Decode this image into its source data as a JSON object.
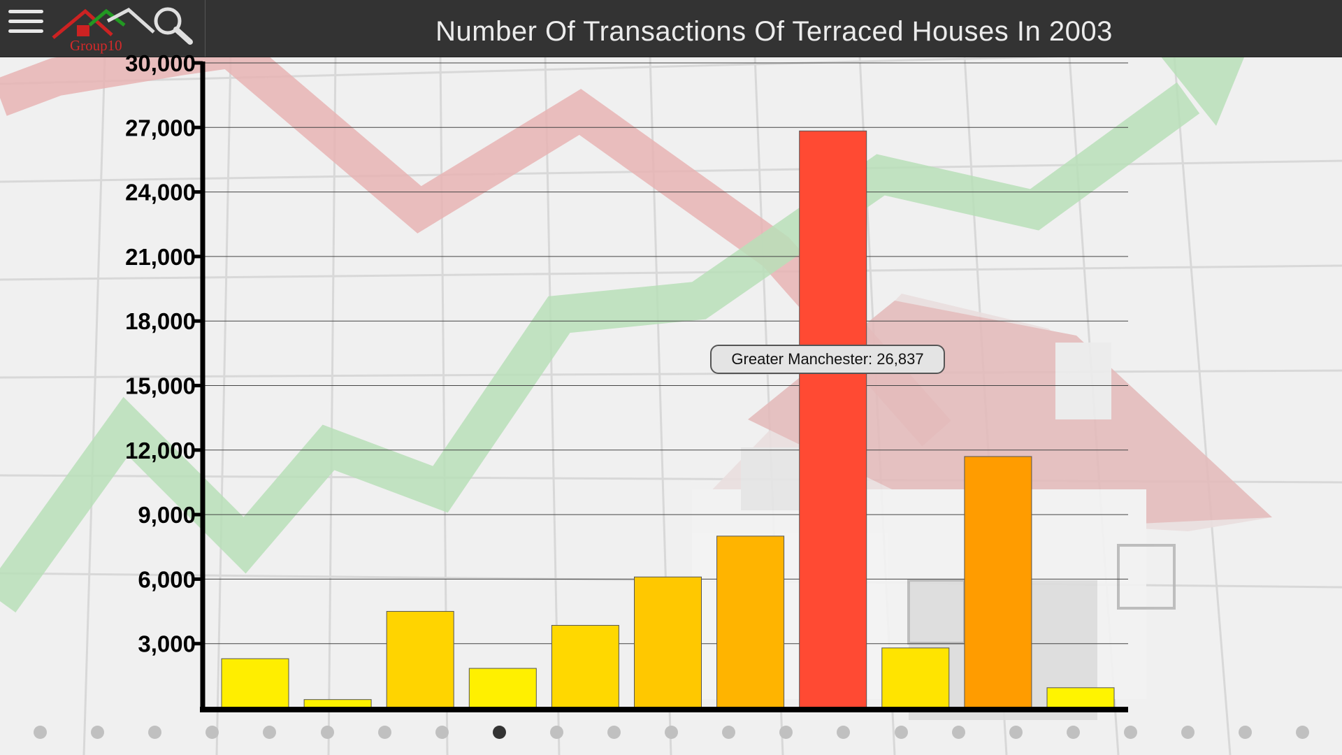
{
  "header": {
    "title": "Number Of Transactions Of Terraced Houses In 2003",
    "logo_text": "Group10"
  },
  "icons": {
    "menu": "hamburger-menu-icon",
    "search": "magnifier-search-icon",
    "logo": "house-roofs-logo-icon"
  },
  "colors": {
    "topbar": "#333333",
    "yellow": "#ffee00",
    "orange": "#ff9c00",
    "red": "#ff4a33"
  },
  "chart_data": {
    "type": "bar",
    "title": "Number Of Transactions Of Terraced Houses In 2003",
    "xlabel": "",
    "ylabel": "",
    "ylim": [
      0,
      30000
    ],
    "yticks": [
      3000,
      6000,
      9000,
      12000,
      15000,
      18000,
      21000,
      24000,
      27000,
      30000
    ],
    "ytick_labels": [
      "3,000",
      "6,000",
      "9,000",
      "12,000",
      "15,000",
      "18,000",
      "21,000",
      "24,000",
      "27,000",
      "30,000"
    ],
    "grid": true,
    "values": [
      2300,
      400,
      4500,
      1850,
      3850,
      6100,
      8000,
      26837,
      2800,
      11700,
      950
    ],
    "colors": [
      "#ffee00",
      "#fff200",
      "#ffd400",
      "#fff000",
      "#ffd800",
      "#ffc800",
      "#ffb400",
      "#ff4a33",
      "#ffe400",
      "#ff9c00",
      "#fff400"
    ],
    "highlight": {
      "label": "Greater Manchester: 26,837"
    }
  },
  "pager": {
    "count": 23,
    "active": 8
  }
}
